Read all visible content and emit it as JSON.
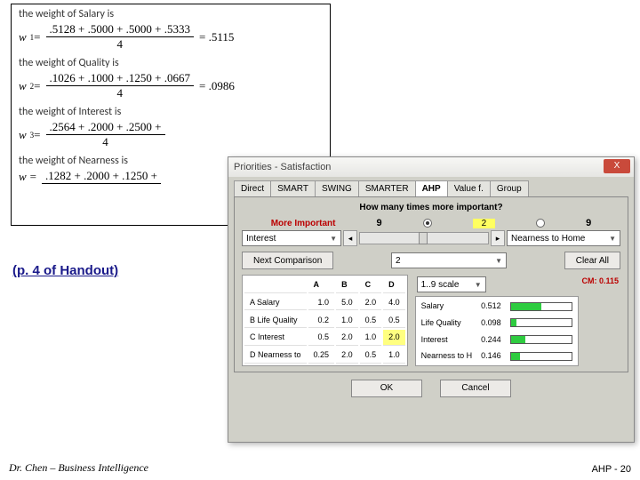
{
  "formulas": [
    {
      "label": "the weight of Salary is",
      "w": "w",
      "sub": "1",
      "top": ".5128 + .5000 + .5000 + .5333",
      "bot": "4",
      "res": ".5115"
    },
    {
      "label": "the weight of Quality is",
      "w": "w",
      "sub": "2",
      "top": ".1026 + .1000 + .1250 + .0667",
      "bot": "4",
      "res": ".0986"
    },
    {
      "label": "the weight of Interest is",
      "w": "w",
      "sub": "3",
      "top": ".2564 + .2000 + .2500 +",
      "bot": "4",
      "res": ""
    },
    {
      "label": "the weight of Nearness is",
      "w": "w",
      "sub": "",
      "top": ".1282 + .2000 + .1250 +",
      "bot": "",
      "res": ""
    }
  ],
  "handout": "(p. 4 of Handout)",
  "footer_left": "Dr. Chen – Business Intelligence",
  "footer_right": "AHP - 20",
  "dlg": {
    "title": "Priorities - Satisfaction",
    "close": "X",
    "tabs": [
      "Direct",
      "SMART",
      "SWING",
      "SMARTER",
      "AHP",
      "Value f.",
      "Group"
    ],
    "tab_sel": 4,
    "question": "How many times more important?",
    "more_important": "More Important",
    "nine_l": "9",
    "two": "2",
    "nine_r": "9",
    "left_combo": "Interest",
    "right_combo": "Nearness to Home",
    "next_btn": "Next Comparison",
    "mid_combo": "2",
    "clear_btn": "Clear All",
    "matrix_heads": [
      "",
      "A",
      "B",
      "C",
      "D"
    ],
    "matrix_rows": [
      {
        "n": "A Salary",
        "v": [
          "1.0",
          "5.0",
          "2.0",
          "4.0"
        ],
        "hl": -1
      },
      {
        "n": "B Life Quality",
        "v": [
          "0.2",
          "1.0",
          "0.5",
          "0.5"
        ],
        "hl": -1
      },
      {
        "n": "C Interest",
        "v": [
          "0.5",
          "2.0",
          "1.0",
          "2.0"
        ],
        "hl": 3
      },
      {
        "n": "D Nearness to",
        "v": [
          "0.25",
          "2.0",
          "0.5",
          "1.0"
        ],
        "hl": -1
      }
    ],
    "scale_label": "1..9 scale",
    "cm_label": "CM:",
    "cm_value": "0.115",
    "prio": [
      {
        "n": "Salary",
        "v": "0.512",
        "w": 51
      },
      {
        "n": "Life Quality",
        "v": "0.098",
        "w": 10
      },
      {
        "n": "Interest",
        "v": "0.244",
        "w": 24
      },
      {
        "n": "Nearness to H",
        "v": "0.146",
        "w": 15
      }
    ],
    "barColor": "#2ecc40",
    "ok": "OK",
    "cancel": "Cancel"
  }
}
